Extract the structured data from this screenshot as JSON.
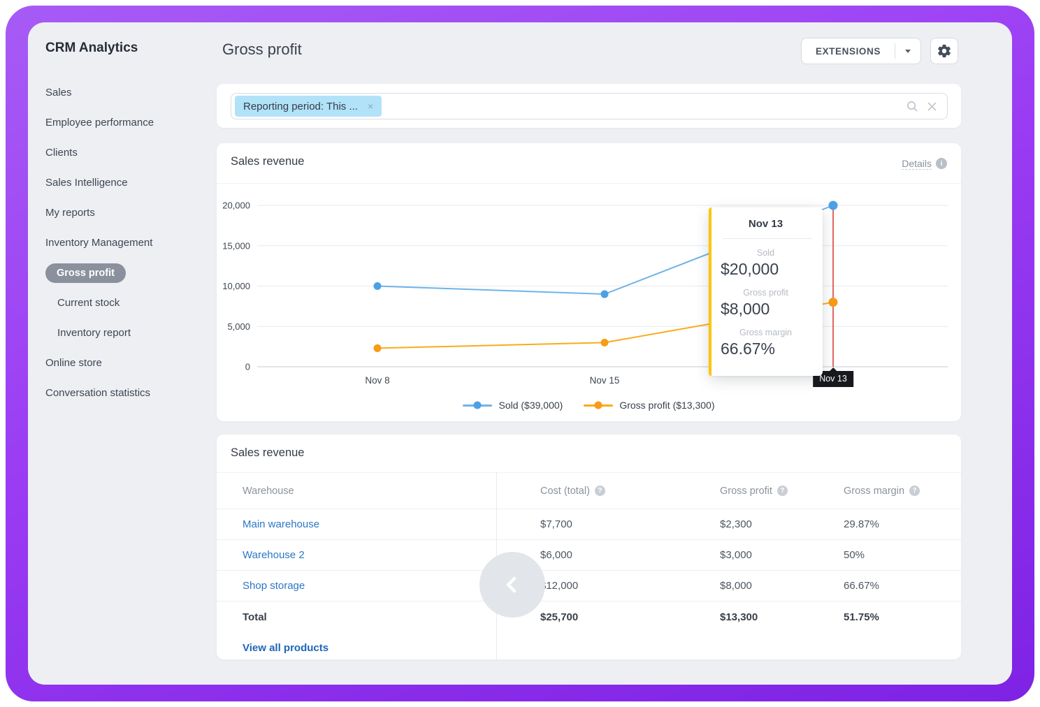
{
  "brand": "CRM Analytics",
  "colors": {
    "frame_purple": "#9a3cf3",
    "background": "#edeff3",
    "link_blue": "#2b77c5",
    "chip_blue": "#b2e2f8",
    "active_pill_gray": "#8a919d"
  },
  "sidebar": {
    "items": [
      {
        "id": "sales",
        "label": "Sales"
      },
      {
        "id": "employee-performance",
        "label": "Employee performance"
      },
      {
        "id": "clients",
        "label": "Clients"
      },
      {
        "id": "sales-intelligence",
        "label": "Sales Intelligence"
      },
      {
        "id": "my-reports",
        "label": "My reports"
      },
      {
        "id": "inventory-management",
        "label": "Inventory Management"
      },
      {
        "id": "gross-profit",
        "label": "Gross profit",
        "active": true
      },
      {
        "id": "current-stock",
        "label": "Current stock",
        "indent": true
      },
      {
        "id": "inventory-report",
        "label": "Inventory report",
        "indent": true
      },
      {
        "id": "online-store",
        "label": "Online store"
      },
      {
        "id": "conversation-statistics",
        "label": "Conversation statistics"
      }
    ]
  },
  "header": {
    "title": "Gross profit",
    "extensions_label": "EXTENSIONS"
  },
  "filter": {
    "chip_label": "Reporting period: This ...",
    "chip_close": "×"
  },
  "chart_card": {
    "title": "Sales revenue",
    "details_label": "Details",
    "info_glyph": "i"
  },
  "chart_data": {
    "type": "line",
    "title": "Sales revenue",
    "x_ticks": [
      "Nov 8",
      "Nov 15"
    ],
    "point_dates": [
      "Nov 8",
      "Nov 15",
      "Nov 13"
    ],
    "ylim": [
      0,
      20000
    ],
    "yticks": [
      0,
      5000,
      10000,
      15000,
      20000
    ],
    "grid": true,
    "legend_position": "bottom",
    "series": [
      {
        "id": "sold",
        "name": "Sold ($39,000)",
        "color": "#6fb3e8",
        "dot_color": "#4da0e4",
        "values": [
          10000,
          9000,
          20000
        ]
      },
      {
        "id": "gross-profit",
        "name": "Gross profit ($13,300)",
        "color": "#f9ab1c",
        "dot_color": "#f79c14",
        "values": [
          2300,
          3000,
          8000
        ]
      }
    ],
    "hover": {
      "x_label": "Nov 13",
      "index": 2,
      "line_color": "#d8392f",
      "accent_color": "#fdc500",
      "rows": [
        {
          "label": "Sold",
          "value": "$20,000"
        },
        {
          "label": "Gross profit",
          "value": "$8,000"
        },
        {
          "label": "Gross margin",
          "value": "66.67%"
        }
      ]
    }
  },
  "table": {
    "title": "Sales revenue",
    "columns": [
      {
        "id": "warehouse",
        "label": "Warehouse",
        "help": false
      },
      {
        "id": "cost",
        "label": "Cost (total)",
        "help": true
      },
      {
        "id": "gross_profit",
        "label": "Gross profit",
        "help": true
      },
      {
        "id": "gross_margin",
        "label": "Gross margin",
        "help": true
      }
    ],
    "rows": [
      {
        "warehouse": "Main warehouse",
        "cost": "$7,700",
        "gross_profit": "$2,300",
        "gross_margin": "29.87%"
      },
      {
        "warehouse": "Warehouse 2",
        "cost": "$6,000",
        "gross_profit": "$3,000",
        "gross_margin": "50%"
      },
      {
        "warehouse": "Shop storage",
        "cost": "$12,000",
        "gross_profit": "$8,000",
        "gross_margin": "66.67%"
      }
    ],
    "total_row": {
      "label": "Total",
      "cost": "$25,700",
      "gross_profit": "$13,300",
      "gross_margin": "51.75%"
    },
    "footer_link": "View all products",
    "help_glyph": "?"
  }
}
